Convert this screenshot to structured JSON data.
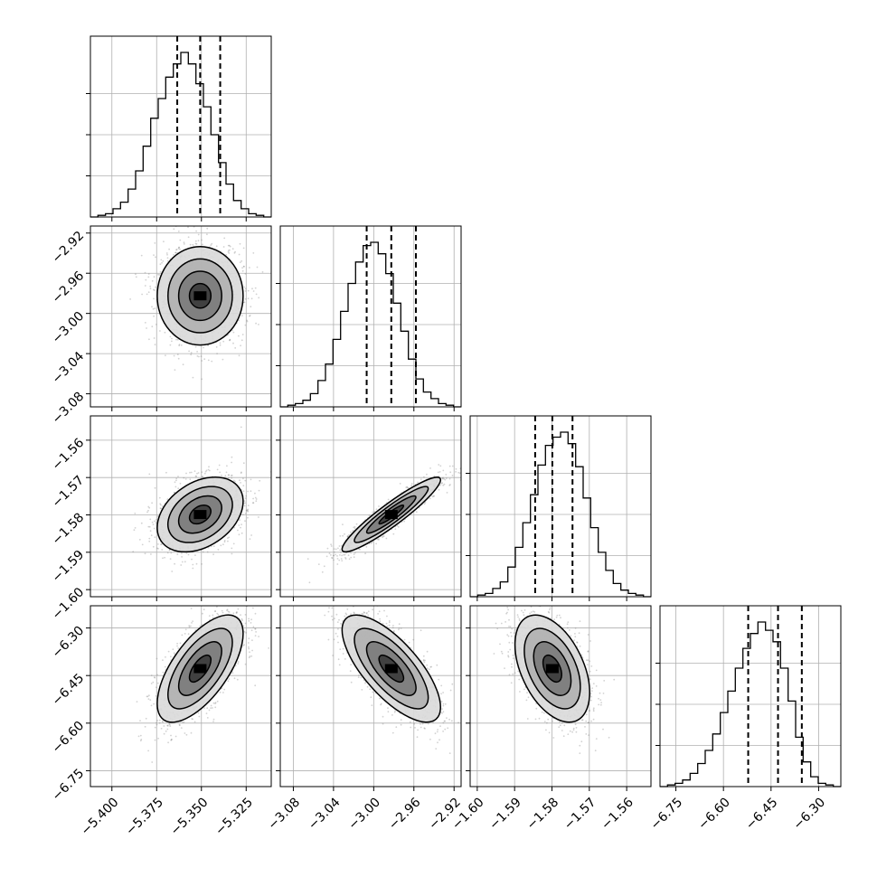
{
  "chart_data": {
    "type": "corner",
    "parameters": [
      {
        "ticks": [
          -5.4,
          -5.375,
          -5.35,
          -5.325
        ],
        "tick_labels": [
          "−5.400",
          "−5.375",
          "−5.350",
          "−5.325"
        ],
        "range": [
          -5.412,
          -5.311
        ],
        "quantiles": [
          -5.3635,
          -5.3507,
          -5.3395
        ]
      },
      {
        "ticks": [
          -3.08,
          -3.04,
          -3.0,
          -2.96,
          -2.92
        ],
        "tick_labels": [
          "−3.08",
          "−3.04",
          "−3.00",
          "−2.96",
          "−2.92"
        ],
        "range": [
          -3.093,
          -2.913
        ],
        "quantiles": [
          -3.007,
          -2.9825,
          -2.958
        ]
      },
      {
        "ticks": [
          -1.6,
          -1.59,
          -1.58,
          -1.57,
          -1.56
        ],
        "tick_labels": [
          "−1.60",
          "−1.59",
          "−1.58",
          "−1.57",
          "−1.56"
        ],
        "range": [
          -1.6019,
          -1.5535
        ],
        "quantiles": [
          -1.5845,
          -1.5799,
          -1.5745
        ]
      },
      {
        "ticks": [
          -6.75,
          -6.6,
          -6.45,
          -6.3
        ],
        "tick_labels": [
          "−6.75",
          "−6.60",
          "−6.45",
          "−6.30"
        ],
        "range": [
          -6.8,
          -6.23
        ],
        "quantiles": [
          -6.522,
          -6.428,
          -6.353
        ]
      }
    ],
    "marginals": [
      [
        0,
        0.01,
        0.02,
        0.05,
        0.09,
        0.17,
        0.28,
        0.43,
        0.6,
        0.72,
        0.85,
        0.93,
        1.0,
        0.93,
        0.81,
        0.67,
        0.5,
        0.33,
        0.2,
        0.1,
        0.05,
        0.02,
        0.01,
        0
      ],
      [
        0,
        0.01,
        0.02,
        0.04,
        0.08,
        0.16,
        0.26,
        0.41,
        0.58,
        0.75,
        0.88,
        0.98,
        1.0,
        0.93,
        0.81,
        0.63,
        0.46,
        0.29,
        0.17,
        0.09,
        0.05,
        0.02,
        0.01,
        0
      ],
      [
        0,
        0.01,
        0.02,
        0.05,
        0.09,
        0.18,
        0.3,
        0.45,
        0.62,
        0.8,
        0.92,
        0.97,
        1.0,
        0.93,
        0.79,
        0.6,
        0.42,
        0.27,
        0.16,
        0.08,
        0.04,
        0.02,
        0.01,
        0
      ],
      [
        0,
        0.01,
        0.02,
        0.04,
        0.08,
        0.14,
        0.22,
        0.32,
        0.45,
        0.58,
        0.72,
        0.84,
        0.93,
        1.0,
        0.95,
        0.88,
        0.72,
        0.52,
        0.3,
        0.15,
        0.06,
        0.02,
        0.01,
        0
      ]
    ],
    "correlations": {
      "1-0": 0.0,
      "2-0": 0.35,
      "2-1": 0.93,
      "3-0": 0.65,
      "3-1": -0.72,
      "3-2": -0.45
    },
    "grid": true,
    "legend": "none"
  }
}
